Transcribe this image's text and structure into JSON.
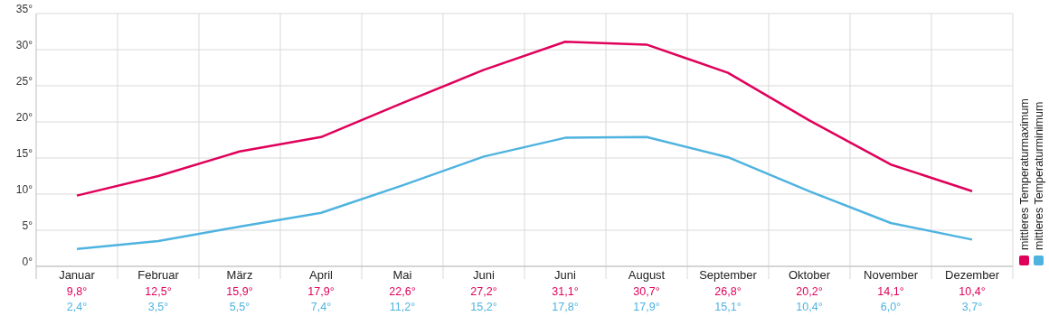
{
  "chart_data": {
    "type": "line",
    "categories": [
      "Januar",
      "Februar",
      "März",
      "April",
      "Mai",
      "Juni",
      "Juni",
      "August",
      "September",
      "Oktober",
      "November",
      "Dezember"
    ],
    "series": [
      {
        "name": "mittleres Temperaturmaximum",
        "color": "#e0005a",
        "values": [
          9.8,
          12.5,
          15.9,
          17.9,
          22.6,
          27.2,
          31.1,
          30.7,
          26.8,
          20.2,
          14.1,
          10.4
        ],
        "value_labels": [
          "9,8°",
          "12,5°",
          "15,9°",
          "17,9°",
          "22,6°",
          "27,2°",
          "31,1°",
          "30,7°",
          "26,8°",
          "20,2°",
          "14,1°",
          "10,4°"
        ]
      },
      {
        "name": "mittleres Temperaturminimum",
        "color": "#4fb3e0",
        "values": [
          2.4,
          3.5,
          5.5,
          7.4,
          11.2,
          15.2,
          17.8,
          17.9,
          15.1,
          10.4,
          6.0,
          3.7
        ],
        "value_labels": [
          "2,4°",
          "3,5°",
          "5,5°",
          "7,4°",
          "11,2°",
          "15,2°",
          "17,8°",
          "17,9°",
          "15,1°",
          "10,4°",
          "6,0°",
          "3,7°"
        ]
      }
    ],
    "ylim": [
      0,
      35
    ],
    "yticks": [
      {
        "value": 0,
        "label": "0°"
      },
      {
        "value": 5,
        "label": "5°"
      },
      {
        "value": 10,
        "label": "10°"
      },
      {
        "value": 15,
        "label": "15°"
      },
      {
        "value": 20,
        "label": "20°"
      },
      {
        "value": 25,
        "label": "25°"
      },
      {
        "value": 30,
        "label": "30°"
      },
      {
        "value": 35,
        "label": "35°"
      }
    ],
    "grid": true,
    "legend": "right",
    "marker": "none",
    "line_style": "solid"
  }
}
